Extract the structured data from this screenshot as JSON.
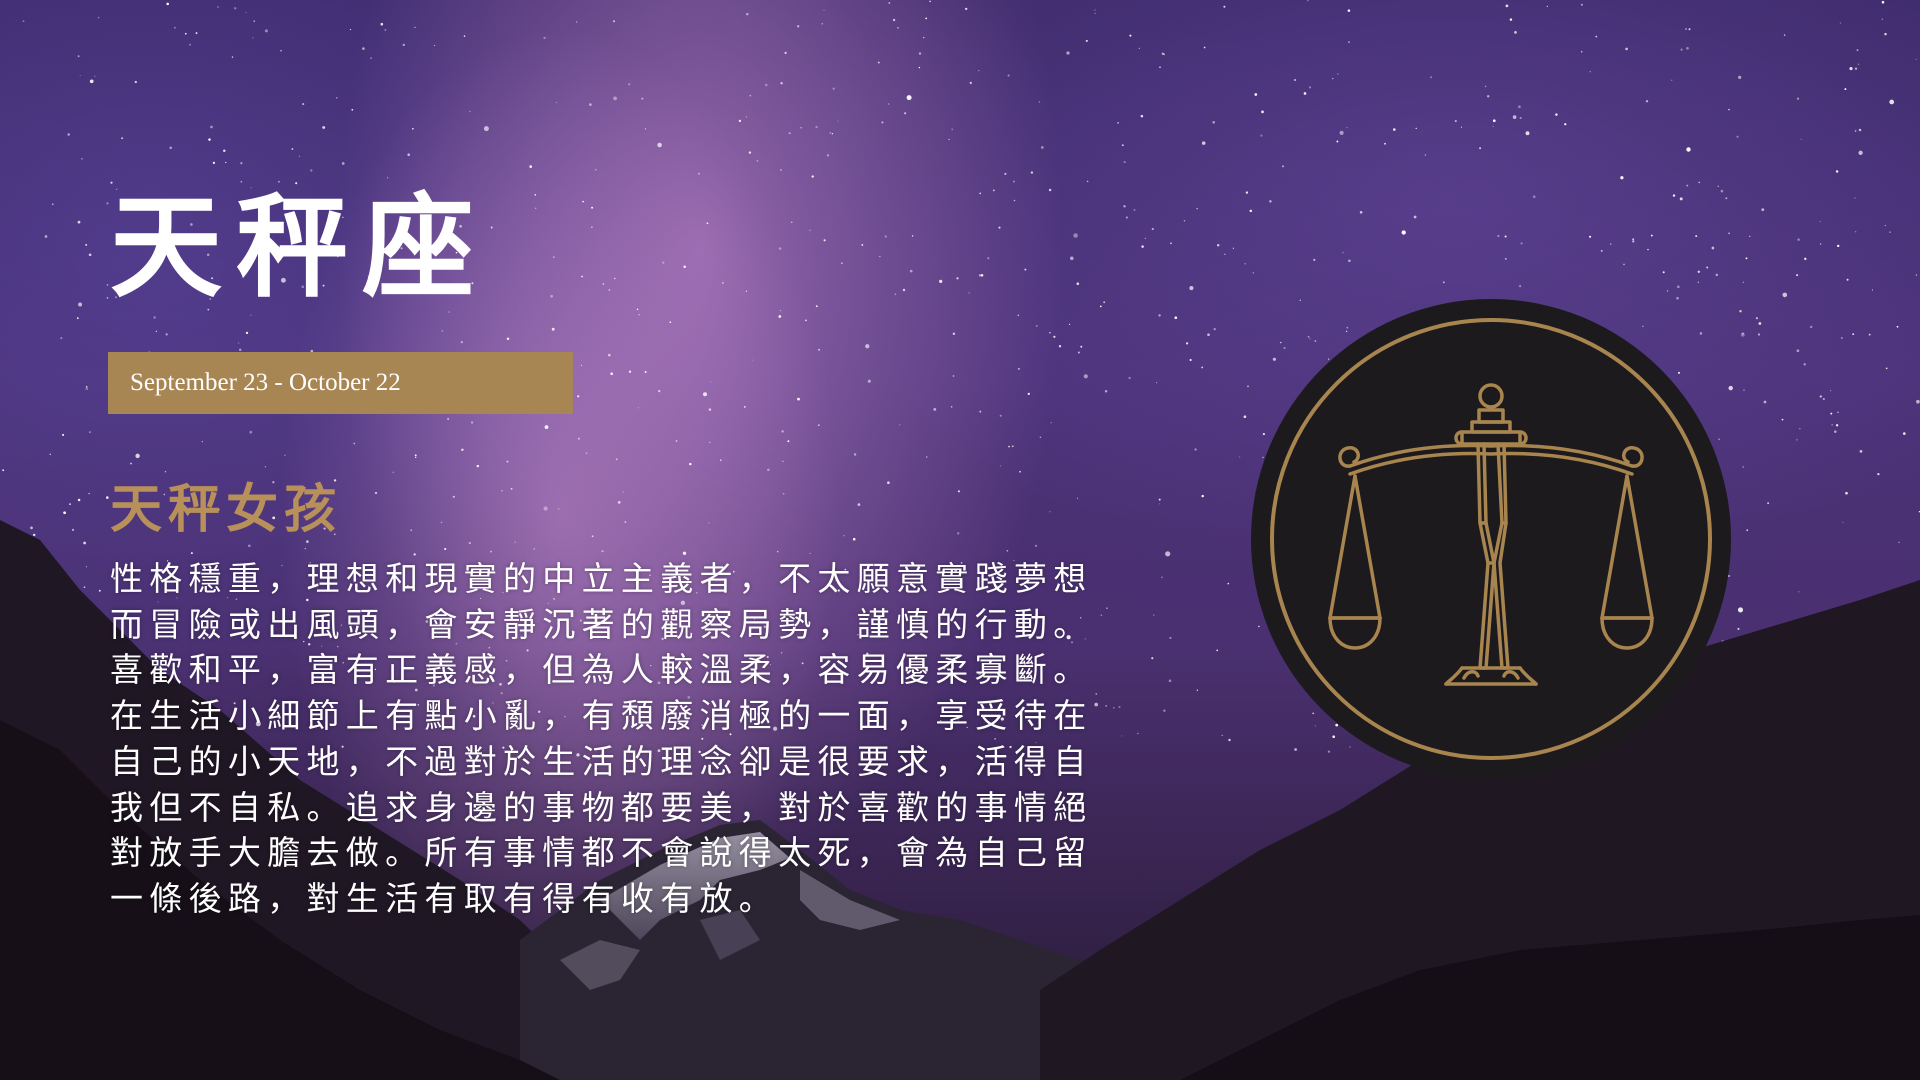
{
  "slide": {
    "title": "天秤座",
    "date_range": "September 23 - October 22",
    "subtitle": "天秤女孩",
    "description_lines": [
      "性格穩重，理想和現實的中立主義者，不太願意實踐夢想",
      "而冒險或出風頭，會安靜沉著的觀察局勢，謹慎的行動。",
      "喜歡和平，富有正義感，但為人較溫柔，容易優柔寡斷。",
      "在生活小細節上有點小亂，有頹廢消極的一面，享受待在",
      "自己的小天地，不過對於生活的理念卻是很要求，活得自",
      "我但不自私。追求身邊的事物都要美，對於喜歡的事情絕",
      "對放手大膽去做。所有事情都不會說得太死，會為自己留",
      "一條後路，對生活有取有得有收有放。"
    ],
    "emblem_icon": "libra-scales-icon"
  },
  "colors": {
    "gold": "#a88653",
    "subtitle_gold": "#b8905a",
    "emblem_fill": "#1c1a1c",
    "emblem_line": "#a8854f",
    "text_white": "#ffffff"
  }
}
